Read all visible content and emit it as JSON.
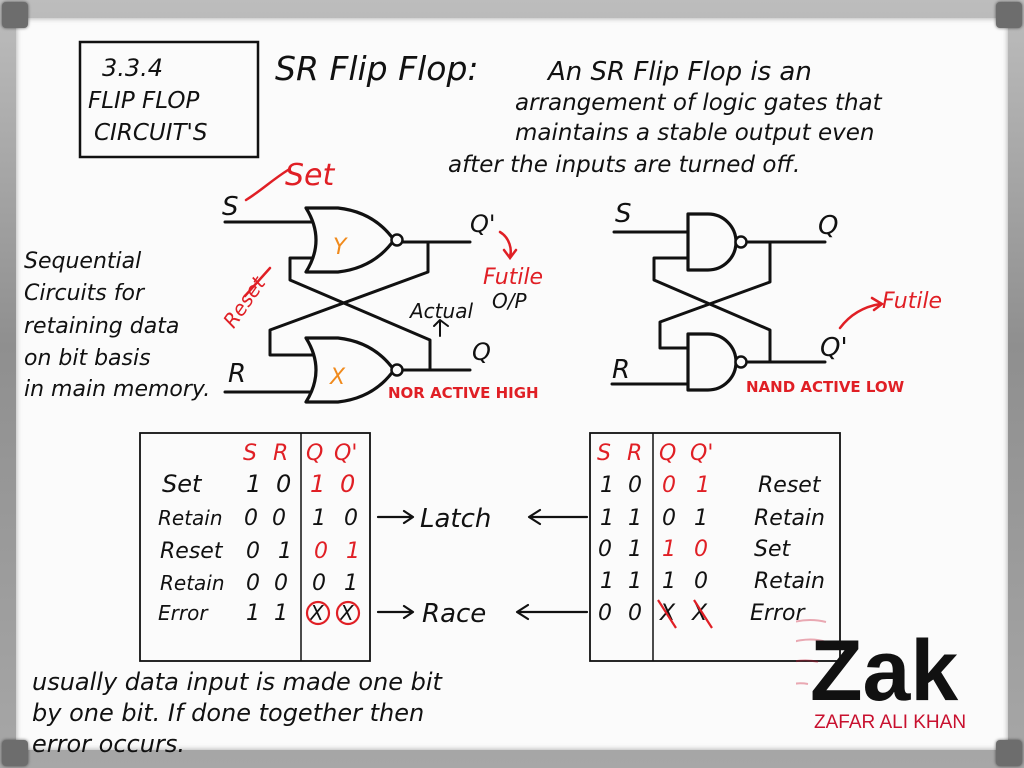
{
  "section_box": {
    "num": "3.3.4",
    "line1": "FLIP FLOP",
    "line2": "CIRCUIT'S"
  },
  "heading": {
    "title": "SR Flip Flop:",
    "l1": "An SR Flip Flop is an",
    "l2": "arrangement of logic gates that",
    "l3": "maintains a stable output even",
    "l4": "after the inputs are turned off."
  },
  "note_left": [
    "Sequential",
    "Circuits for",
    "retaining data",
    "on bit basis",
    "in main memory."
  ],
  "nor": {
    "s": "S",
    "r": "R",
    "set": "Set",
    "reset": "Reset",
    "y": "Y",
    "x": "X",
    "q_prime": "Q'",
    "q": "Q",
    "futile": "Futile",
    "actual": "Actual",
    "op": "O/P",
    "caption": "NOR ACTIVE HIGH"
  },
  "nand": {
    "s": "S",
    "r": "R",
    "q": "Q",
    "q_prime": "Q'",
    "futile": "Futile",
    "caption": "NAND ACTIVE LOW"
  },
  "table_left": {
    "headers": [
      "S",
      "R",
      "Q",
      "Q'"
    ],
    "rows": [
      {
        "label": "Set",
        "s": "1",
        "r": "0",
        "q": "1",
        "qp": "0"
      },
      {
        "label": "Retain",
        "s": "0",
        "r": "0",
        "q": "1",
        "qp": "0"
      },
      {
        "label": "Reset",
        "s": "0",
        "r": "1",
        "q": "0",
        "qp": "1"
      },
      {
        "label": "Retain",
        "s": "0",
        "r": "0",
        "q": "0",
        "qp": "1"
      },
      {
        "label": "Error",
        "s": "1",
        "r": "1",
        "q": "X",
        "qp": "X"
      }
    ]
  },
  "mid_labels": {
    "latch": "Latch",
    "race": "Race"
  },
  "table_right": {
    "headers": [
      "S",
      "R",
      "Q",
      "Q'"
    ],
    "rows": [
      {
        "s": "1",
        "r": "0",
        "q": "0",
        "qp": "1",
        "label": "Reset"
      },
      {
        "s": "1",
        "r": "1",
        "q": "0",
        "qp": "1",
        "label": "Retain"
      },
      {
        "s": "0",
        "r": "1",
        "q": "1",
        "qp": "0",
        "label": "Set"
      },
      {
        "s": "1",
        "r": "1",
        "q": "1",
        "qp": "0",
        "label": "Retain"
      },
      {
        "s": "0",
        "r": "0",
        "q": "X",
        "qp": "X",
        "label": "Error"
      }
    ]
  },
  "bottom_note": [
    "usually data input is made one bit",
    "by one bit. If done together then",
    "error occurs."
  ],
  "brand": {
    "name": "Zak",
    "sub": "ZAFAR ALI KHAN"
  },
  "colors": {
    "ink": "#111111",
    "red": "#e01f25",
    "orange": "#f08a1c",
    "board": "#fbfbfb",
    "brand_red": "#c8102e"
  }
}
